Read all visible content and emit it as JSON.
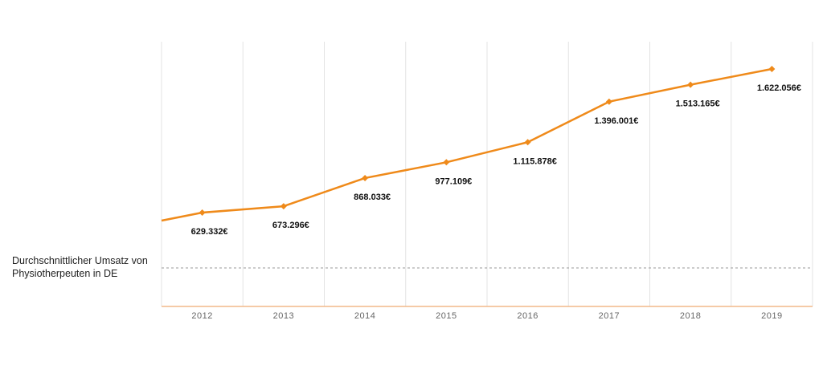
{
  "chart_data": {
    "type": "line",
    "categories": [
      "2012",
      "2013",
      "2014",
      "2015",
      "2016",
      "2017",
      "2018",
      "2019"
    ],
    "series": [
      {
        "values": [
          629332,
          673296,
          868033,
          977109,
          1115878,
          1396001,
          1513165,
          1622056
        ],
        "labels": [
          "629.332€",
          "673.296€",
          "868.033€",
          "977.109€",
          "1.115.878€",
          "1.396.001€",
          "1.513.165€",
          "1.622.056€"
        ],
        "color": "#ef8a1a"
      }
    ],
    "reference_line": {
      "label": "Durchschnittlicher Umsatz von Physiotherpeuten in DE",
      "style": "dashed",
      "color": "#999999"
    },
    "grid": true,
    "axis_color": "#f2b98a",
    "grid_color": "#e3e3e3"
  }
}
